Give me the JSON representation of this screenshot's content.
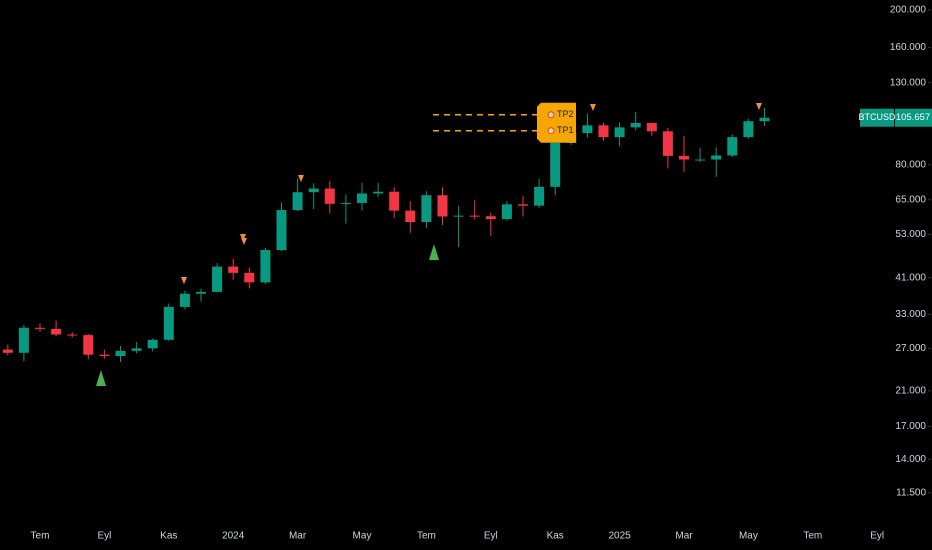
{
  "chart_data": {
    "type": "candlestick",
    "symbol": "BTCUSD",
    "last_label": "105.657",
    "log_scale": true,
    "up_color": "#089981",
    "down_color": "#f23645",
    "level_color": "#f7a600",
    "categories": [
      null,
      null,
      "Tem",
      null,
      null,
      null,
      "Eyl",
      null,
      null,
      null,
      "Kas",
      null,
      null,
      null,
      "2024",
      null,
      null,
      null,
      "Mar",
      null,
      null,
      null,
      "May",
      null,
      null,
      null,
      "Tem",
      null,
      null,
      null,
      "Eyl",
      null,
      null,
      null,
      "Kas",
      null,
      null,
      null,
      "2025",
      null,
      null,
      null,
      "Mar",
      null,
      null,
      null,
      "May",
      null,
      null,
      null,
      "Tem",
      null,
      null,
      null,
      "Eyl",
      null,
      null
    ],
    "open": [
      26800,
      26300,
      30500,
      30300,
      29300,
      29200,
      26000,
      25800,
      26600,
      27000,
      28400,
      34500,
      37300,
      37700,
      43800,
      42200,
      39900,
      48300,
      61200,
      68000,
      69500,
      63500,
      63800,
      67500,
      68200,
      61000,
      57000,
      66800,
      58900,
      59200,
      59000,
      58000,
      63300,
      62800,
      70200,
      91000,
      96500,
      101000,
      94200,
      99800,
      102400,
      97500,
      84300,
      82500,
      82500,
      84500,
      94200,
      103500,
      null,
      null,
      null,
      null,
      null,
      null,
      null,
      null,
      null
    ],
    "high": [
      27600,
      31000,
      31300,
      31800,
      29700,
      29400,
      26800,
      27400,
      28000,
      28600,
      35200,
      38000,
      38400,
      44700,
      45800,
      43500,
      48900,
      64000,
      73800,
      71700,
      72700,
      67000,
      71900,
      71900,
      70000,
      64500,
      68400,
      70000,
      62700,
      65000,
      60300,
      64500,
      66500,
      73600,
      93500,
      99600,
      108300,
      102700,
      102700,
      109300,
      102500,
      99500,
      95000,
      88500,
      88700,
      95700,
      105000,
      111900,
      null,
      null,
      null,
      null,
      null,
      null,
      null,
      null,
      null
    ],
    "low": [
      25900,
      25000,
      29800,
      29000,
      28800,
      25300,
      25400,
      24900,
      26200,
      26500,
      28200,
      34000,
      35600,
      37600,
      40500,
      38500,
      39500,
      48000,
      60800,
      61500,
      60000,
      56500,
      61000,
      66000,
      58400,
      53500,
      55000,
      56000,
      49100,
      57800,
      52500,
      57500,
      58900,
      62000,
      66800,
      90000,
      94000,
      92200,
      89200,
      98000,
      95000,
      78300,
      76600,
      81200,
      74500,
      83800,
      93300,
      100700,
      null,
      null,
      null,
      null,
      null,
      null,
      null,
      null,
      null
    ],
    "close": [
      26300,
      30500,
      30300,
      29300,
      29200,
      26000,
      25800,
      26600,
      27000,
      28400,
      34500,
      37300,
      37700,
      43800,
      42200,
      39900,
      48300,
      61200,
      68000,
      69500,
      63500,
      63800,
      67500,
      68200,
      61000,
      57000,
      66800,
      58900,
      59200,
      59000,
      58000,
      63300,
      62800,
      70200,
      91000,
      96500,
      101000,
      94200,
      99800,
      102400,
      97500,
      84300,
      82500,
      82500,
      84500,
      94200,
      103500,
      105657,
      null,
      null,
      null,
      null,
      null,
      null,
      null,
      null,
      null
    ],
    "levels": [
      {
        "name": "TP2",
        "value": 107500
      },
      {
        "name": "TP1",
        "value": 97800
      }
    ],
    "ylim": [
      9780,
      212000
    ],
    "yticks": [
      {
        "value": 200000,
        "label": "200.000"
      },
      {
        "value": 160000,
        "label": "160.000"
      },
      {
        "value": 130000,
        "label": "130.000"
      },
      {
        "value": 80000,
        "label": "80.000"
      },
      {
        "value": 65000,
        "label": "65.000"
      },
      {
        "value": 53000,
        "label": "53.000"
      },
      {
        "value": 41000,
        "label": "41.000"
      },
      {
        "value": 33000,
        "label": "33.000"
      },
      {
        "value": 27000,
        "label": "27.000"
      },
      {
        "value": 21000,
        "label": "21.000"
      },
      {
        "value": 17000,
        "label": "17.000"
      },
      {
        "value": 14000,
        "label": "14.000"
      },
      {
        "value": 11500,
        "label": "11.500"
      }
    ],
    "grid": false
  }
}
